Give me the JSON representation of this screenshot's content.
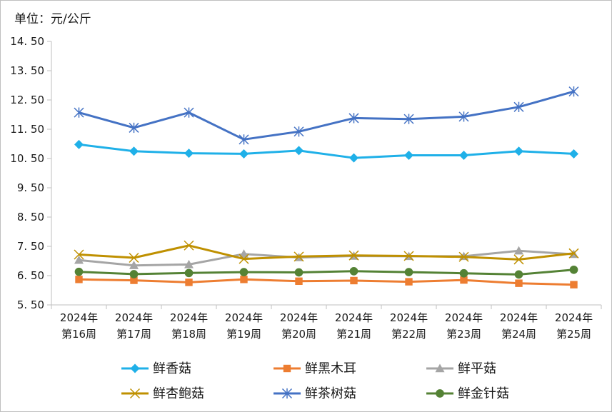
{
  "unit_label": "单位：元/公斤",
  "chart_data": {
    "type": "line",
    "title": "",
    "ylabel": "单位：元/公斤",
    "xlabel": "",
    "ylim": [
      5.5,
      14.5
    ],
    "yticks": [
      "14. 50",
      "13. 50",
      "12. 50",
      "11. 50",
      "10. 50",
      "9. 50",
      "8. 50",
      "7. 50",
      "6. 50",
      "5. 50"
    ],
    "ytick_values": [
      14.5,
      13.5,
      12.5,
      11.5,
      10.5,
      9.5,
      8.5,
      7.5,
      6.5,
      5.5
    ],
    "categories": [
      [
        "2024年",
        "第16周"
      ],
      [
        "2024年",
        "第17周"
      ],
      [
        "2024年",
        "第18周"
      ],
      [
        "2024年",
        "第19周"
      ],
      [
        "2024年",
        "第20周"
      ],
      [
        "2024年",
        "第21周"
      ],
      [
        "2024年",
        "第22周"
      ],
      [
        "2024年",
        "第23周"
      ],
      [
        "2024年",
        "第24周"
      ],
      [
        "2024年",
        "第25周"
      ]
    ],
    "grid": false,
    "legend_position": "bottom",
    "series": [
      {
        "name": "鲜香菇",
        "color": "#1fb0e8",
        "marker": "diamond",
        "values": [
          10.98,
          10.75,
          10.68,
          10.66,
          10.77,
          10.52,
          10.61,
          10.61,
          10.75,
          10.66
        ]
      },
      {
        "name": "鲜黑木耳",
        "color": "#ed7d31",
        "marker": "square",
        "values": [
          6.37,
          6.34,
          6.27,
          6.37,
          6.31,
          6.33,
          6.29,
          6.35,
          6.24,
          6.19
        ]
      },
      {
        "name": "鲜平菇",
        "color": "#a5a5a5",
        "marker": "triangle",
        "values": [
          7.03,
          6.85,
          6.88,
          7.24,
          7.12,
          7.17,
          7.16,
          7.16,
          7.35,
          7.23
        ]
      },
      {
        "name": "鲜杏鲍菇",
        "color": "#bf9000",
        "marker": "x",
        "values": [
          7.22,
          7.11,
          7.53,
          7.07,
          7.15,
          7.19,
          7.17,
          7.14,
          7.05,
          7.26
        ]
      },
      {
        "name": "鲜茶树菇",
        "color": "#4472c4",
        "marker": "asterisk",
        "values": [
          12.07,
          11.55,
          12.07,
          11.15,
          11.42,
          11.88,
          11.85,
          11.93,
          12.26,
          12.79
        ]
      },
      {
        "name": "鲜金针菇",
        "color": "#548235",
        "marker": "circle",
        "values": [
          6.63,
          6.55,
          6.59,
          6.62,
          6.61,
          6.65,
          6.62,
          6.58,
          6.54,
          6.7
        ]
      }
    ]
  }
}
